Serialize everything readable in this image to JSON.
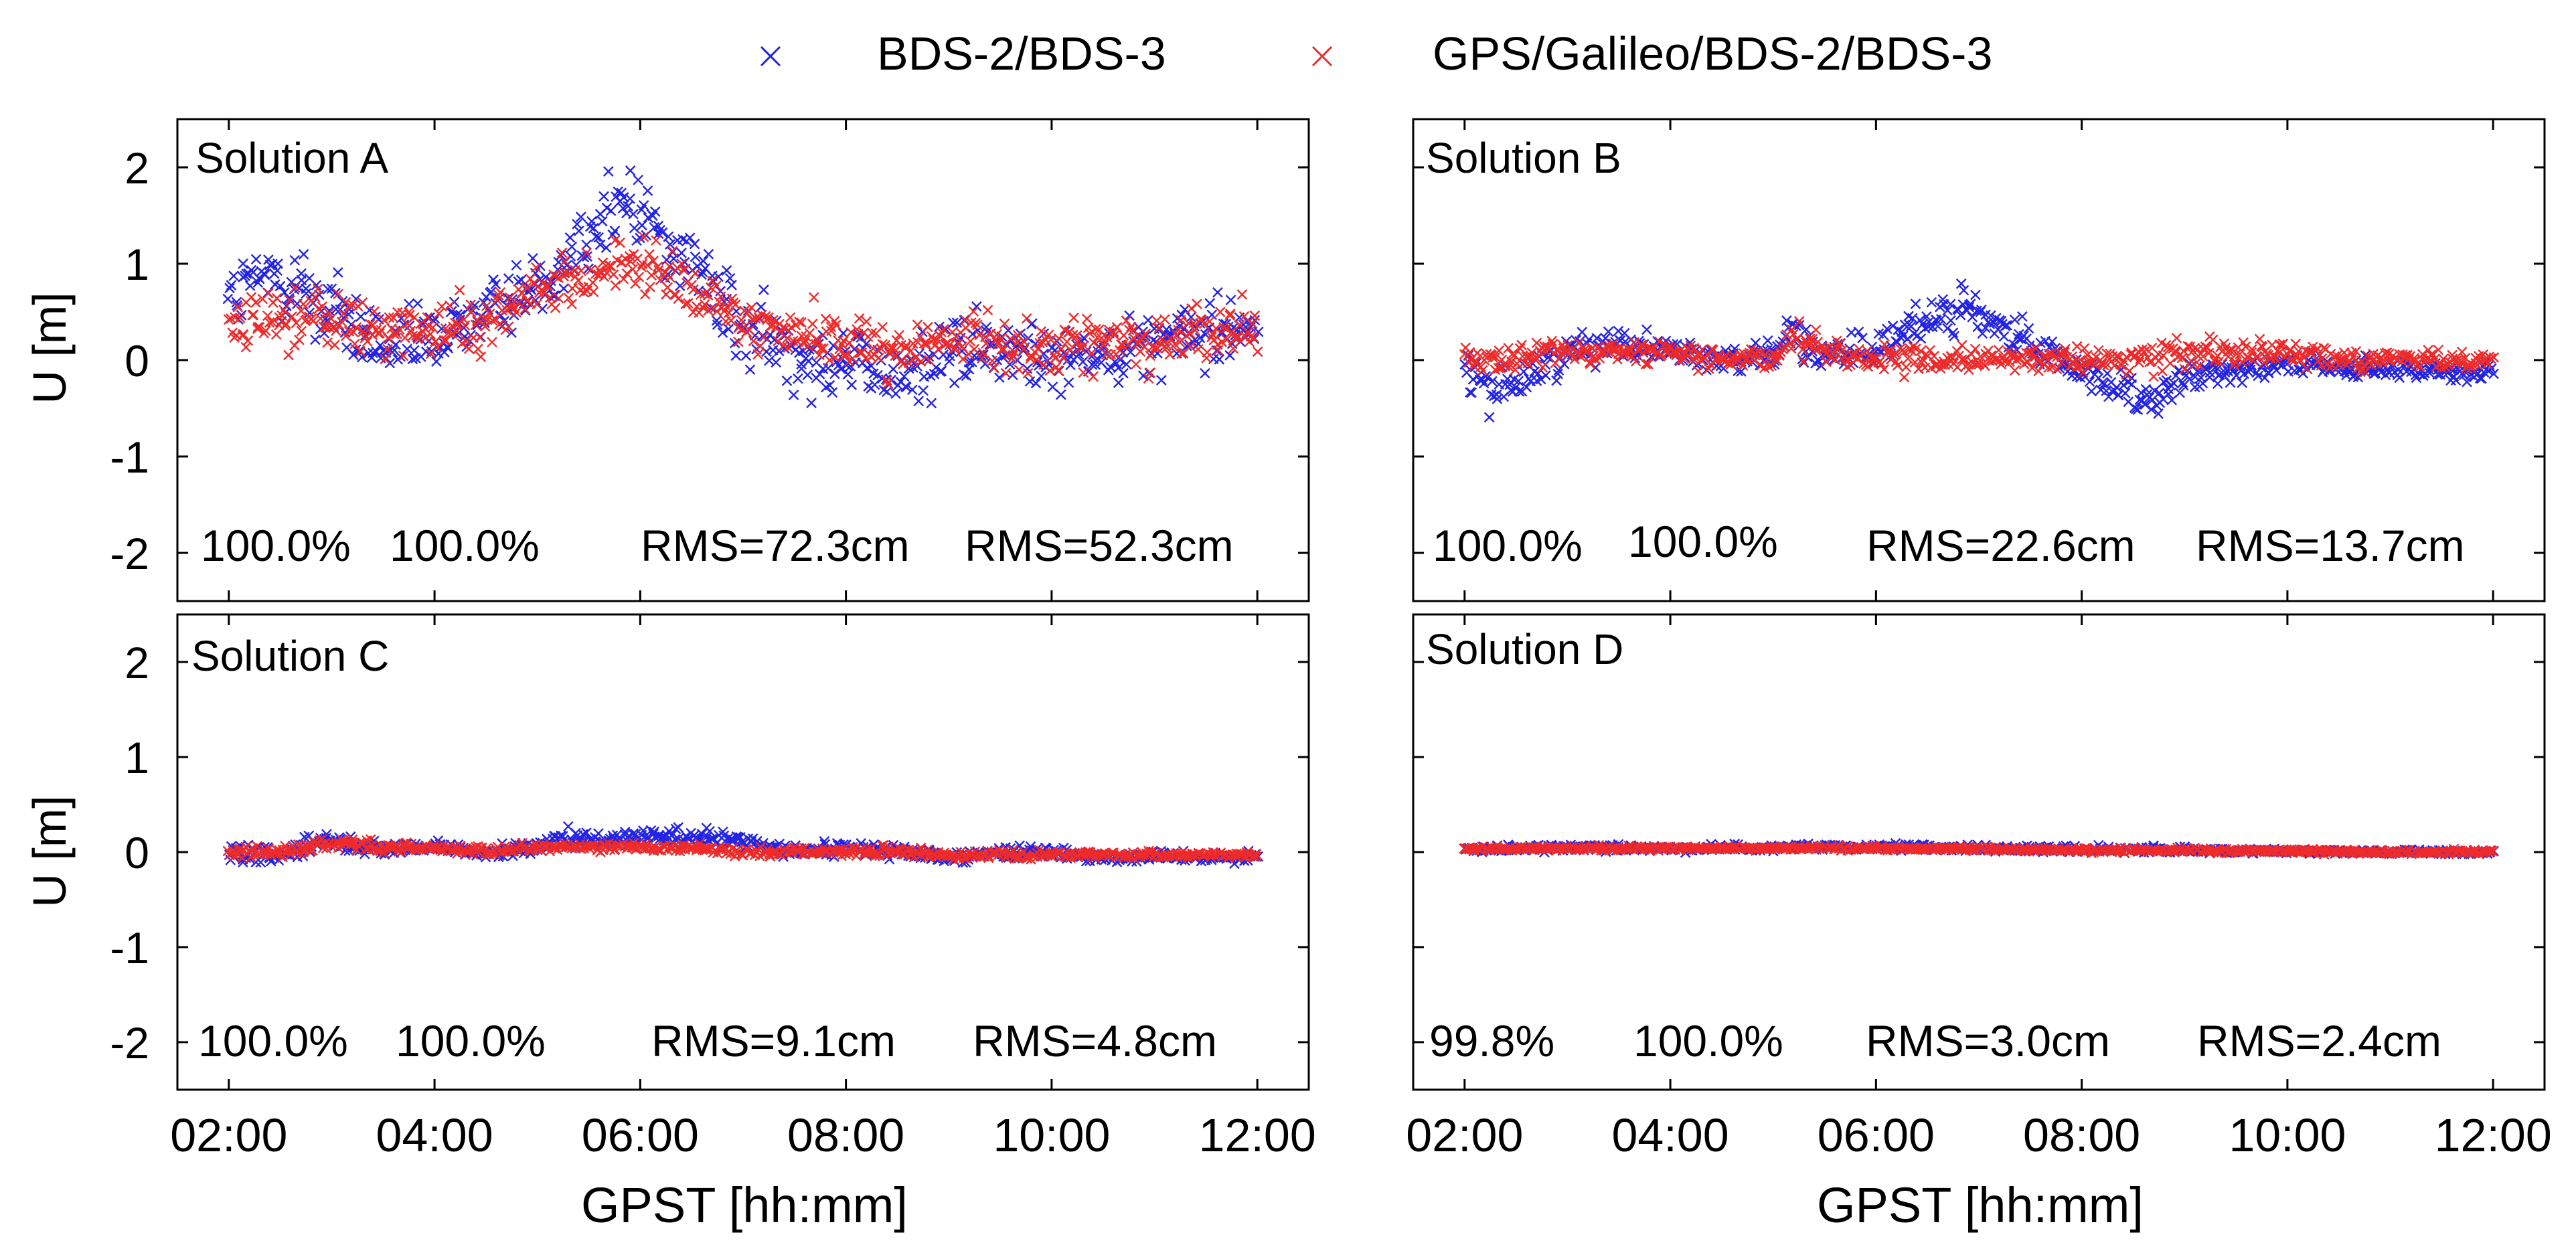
{
  "colors": {
    "series_blue": "#2323E6",
    "series_red": "#EE2A2A",
    "axis": "#000000",
    "background": "#FFFFFF"
  },
  "legend": {
    "entries": [
      {
        "name": "BDS-2/BDS-3",
        "color": "#2323E6",
        "marker": "x"
      },
      {
        "name": "GPS/Galileo/BDS-2/BDS-3",
        "color": "#EE2A2A",
        "marker": "x"
      }
    ]
  },
  "axes_text": {
    "ylabel": "U [m]",
    "xlabel": "GPST [hh:mm]",
    "ytick_labels": [
      "2",
      "1",
      "0",
      "-1",
      "-2"
    ],
    "xtick_labels": [
      "02:00",
      "04:00",
      "06:00",
      "08:00",
      "10:00",
      "12:00"
    ]
  },
  "chart_data": [
    {
      "type": "scatter",
      "title": "Solution A",
      "xlabel": "",
      "ylabel": "U [m]",
      "xlim": [
        1.5,
        12.5
      ],
      "ylim": [
        -2.5,
        2.5
      ],
      "xticks": [
        2,
        4,
        6,
        8,
        10,
        12
      ],
      "yticks": [
        2,
        1,
        0,
        -1,
        -2
      ],
      "grid": false,
      "x_unit": "hours GPST (02:00 to 12:00)",
      "series": [
        {
          "name": "BDS-2/BDS-3",
          "color": "#2323E6",
          "marker": "x",
          "availability": "100.0%",
          "rms": "RMS=72.3cm",
          "x": [
            2.0,
            2.5,
            3.0,
            3.5,
            4.0,
            4.5,
            5.0,
            5.5,
            5.9,
            6.2,
            6.5,
            7.0,
            7.5,
            8.0,
            8.5,
            9.0,
            9.5,
            10.0,
            10.5,
            11.0,
            11.5,
            12.0
          ],
          "y": [
            0.6,
            0.9,
            0.5,
            0.1,
            0.2,
            0.5,
            0.8,
            1.3,
            1.7,
            1.3,
            1.0,
            0.3,
            0.1,
            0.0,
            -0.2,
            0.1,
            0.1,
            0.0,
            0.1,
            0.2,
            0.3,
            0.4
          ],
          "spread": [
            0.35,
            0.45,
            0.4,
            0.35,
            0.35,
            0.3,
            0.3,
            0.35,
            0.4,
            0.35,
            0.35,
            0.35,
            0.35,
            0.35,
            0.35,
            0.35,
            0.35,
            0.3,
            0.3,
            0.3,
            0.3,
            0.3
          ]
        },
        {
          "name": "GPS/Galileo/BDS-2/BDS-3",
          "color": "#EE2A2A",
          "marker": "x",
          "availability": "100.0%",
          "rms": "RMS=52.3cm",
          "x": [
            2.0,
            2.5,
            3.0,
            3.5,
            4.0,
            4.5,
            5.0,
            5.5,
            5.9,
            6.2,
            6.5,
            7.0,
            7.5,
            8.0,
            8.5,
            9.0,
            9.5,
            10.0,
            10.5,
            11.0,
            11.5,
            12.0
          ],
          "y": [
            0.3,
            0.5,
            0.4,
            0.3,
            0.3,
            0.4,
            0.7,
            0.9,
            1.0,
            0.9,
            0.7,
            0.4,
            0.3,
            0.2,
            0.1,
            0.2,
            0.2,
            0.1,
            0.2,
            0.2,
            0.3,
            0.3
          ],
          "spread": [
            0.25,
            0.3,
            0.3,
            0.25,
            0.25,
            0.25,
            0.25,
            0.25,
            0.25,
            0.25,
            0.25,
            0.25,
            0.25,
            0.25,
            0.25,
            0.25,
            0.25,
            0.25,
            0.25,
            0.25,
            0.25,
            0.25
          ]
        }
      ]
    },
    {
      "type": "scatter",
      "title": "Solution B",
      "xlabel": "",
      "ylabel": "",
      "xlim": [
        1.5,
        12.5
      ],
      "ylim": [
        -2.5,
        2.5
      ],
      "xticks": [
        2,
        4,
        6,
        8,
        10,
        12
      ],
      "yticks": [
        2,
        1,
        0,
        -1,
        -2
      ],
      "grid": false,
      "x_unit": "hours GPST (02:00 to 12:00)",
      "series": [
        {
          "name": "BDS-2/BDS-3",
          "color": "#2323E6",
          "marker": "x",
          "availability": "100.0%",
          "rms": "RMS=22.6cm",
          "x": [
            2.0,
            2.3,
            2.7,
            3.0,
            3.5,
            4.0,
            4.5,
            5.0,
            5.2,
            5.5,
            6.0,
            6.5,
            6.8,
            7.2,
            7.6,
            8.0,
            8.4,
            8.6,
            9.0,
            9.5,
            10.0,
            10.5,
            11.0,
            11.5,
            12.0
          ],
          "y": [
            -0.2,
            -0.3,
            -0.1,
            0.1,
            0.2,
            0.1,
            0.0,
            0.1,
            0.3,
            0.0,
            0.1,
            0.4,
            0.6,
            0.3,
            0.1,
            -0.1,
            -0.3,
            -0.5,
            -0.2,
            -0.1,
            0.0,
            -0.1,
            -0.1,
            -0.1,
            -0.1
          ],
          "spread": [
            0.2,
            0.2,
            0.2,
            0.15,
            0.15,
            0.12,
            0.12,
            0.12,
            0.25,
            0.15,
            0.15,
            0.2,
            0.2,
            0.2,
            0.15,
            0.15,
            0.15,
            0.2,
            0.15,
            0.12,
            0.12,
            0.1,
            0.1,
            0.1,
            0.1
          ]
        },
        {
          "name": "GPS/Galileo/BDS-2/BDS-3",
          "color": "#EE2A2A",
          "marker": "x",
          "availability": "100.0%",
          "rms": "RMS=13.7cm",
          "x": [
            2.0,
            2.5,
            3.0,
            3.5,
            4.0,
            4.5,
            5.0,
            5.2,
            5.5,
            6.0,
            6.5,
            7.0,
            7.5,
            8.0,
            8.5,
            9.0,
            9.5,
            10.0,
            10.5,
            11.0,
            11.5,
            12.0
          ],
          "y": [
            0.0,
            0.0,
            0.1,
            0.1,
            0.1,
            0.0,
            0.0,
            0.3,
            0.1,
            0.0,
            0.0,
            0.0,
            0.0,
            0.0,
            0.0,
            0.1,
            0.1,
            0.1,
            0.0,
            0.0,
            0.0,
            0.0
          ],
          "spread": [
            0.12,
            0.12,
            0.12,
            0.1,
            0.1,
            0.1,
            0.1,
            0.2,
            0.12,
            0.12,
            0.12,
            0.12,
            0.12,
            0.12,
            0.12,
            0.15,
            0.12,
            0.1,
            0.1,
            0.08,
            0.08,
            0.08
          ]
        }
      ]
    },
    {
      "type": "scatter",
      "title": "Solution C",
      "xlabel": "GPST [hh:mm]",
      "ylabel": "U [m]",
      "xlim": [
        1.5,
        12.5
      ],
      "ylim": [
        -2.5,
        2.5
      ],
      "xticks": [
        2,
        4,
        6,
        8,
        10,
        12
      ],
      "yticks": [
        2,
        1,
        0,
        -1,
        -2
      ],
      "grid": false,
      "x_unit": "hours GPST (02:00 to 12:00)",
      "series": [
        {
          "name": "BDS-2/BDS-3",
          "color": "#2323E6",
          "marker": "x",
          "availability": "100.0%",
          "rms": "RMS=9.1cm",
          "x": [
            2.0,
            2.5,
            2.8,
            3.0,
            3.5,
            4.0,
            4.5,
            5.0,
            5.3,
            5.5,
            6.0,
            6.5,
            7.0,
            7.5,
            8.0,
            8.5,
            9.0,
            9.5,
            10.0,
            10.5,
            11.0,
            11.5,
            12.0
          ],
          "y": [
            0.0,
            -0.05,
            0.15,
            0.1,
            0.05,
            0.05,
            0.0,
            0.05,
            0.15,
            0.1,
            0.15,
            0.15,
            0.1,
            0.0,
            0.05,
            0.0,
            -0.05,
            0.0,
            0.0,
            -0.05,
            -0.05,
            -0.05,
            -0.05
          ],
          "spread": [
            0.08,
            0.08,
            0.12,
            0.08,
            0.06,
            0.06,
            0.05,
            0.06,
            0.1,
            0.08,
            0.08,
            0.08,
            0.08,
            0.07,
            0.07,
            0.07,
            0.06,
            0.06,
            0.06,
            0.05,
            0.05,
            0.05,
            0.05
          ]
        },
        {
          "name": "GPS/Galileo/BDS-2/BDS-3",
          "color": "#EE2A2A",
          "marker": "x",
          "availability": "100.0%",
          "rms": "RMS=4.8cm",
          "x": [
            2.0,
            2.5,
            3.0,
            3.5,
            4.0,
            4.5,
            5.0,
            5.5,
            6.0,
            6.5,
            7.0,
            7.5,
            8.0,
            8.5,
            9.0,
            9.5,
            10.0,
            10.5,
            11.0,
            11.5,
            12.0
          ],
          "y": [
            0.0,
            0.0,
            0.1,
            0.05,
            0.05,
            0.0,
            0.05,
            0.05,
            0.05,
            0.05,
            0.0,
            0.0,
            0.0,
            0.0,
            -0.03,
            -0.02,
            -0.03,
            -0.03,
            -0.03,
            -0.03,
            -0.03
          ],
          "spread": [
            0.05,
            0.05,
            0.06,
            0.05,
            0.04,
            0.04,
            0.04,
            0.04,
            0.04,
            0.04,
            0.04,
            0.04,
            0.05,
            0.05,
            0.04,
            0.04,
            0.04,
            0.03,
            0.03,
            0.03,
            0.03
          ]
        }
      ]
    },
    {
      "type": "scatter",
      "title": "Solution D",
      "xlabel": "GPST [hh:mm]",
      "ylabel": "",
      "xlim": [
        1.5,
        12.5
      ],
      "ylim": [
        -2.5,
        2.5
      ],
      "xticks": [
        2,
        4,
        6,
        8,
        10,
        12
      ],
      "yticks": [
        2,
        1,
        0,
        -1,
        -2
      ],
      "grid": false,
      "x_unit": "hours GPST (02:00 to 12:00)",
      "series": [
        {
          "name": "BDS-2/BDS-3",
          "color": "#2323E6",
          "marker": "x",
          "availability": "99.8%",
          "rms": "RMS=3.0cm",
          "x": [
            2.0,
            3.0,
            4.0,
            5.0,
            6.0,
            7.0,
            8.0,
            9.0,
            10.0,
            11.0,
            12.0
          ],
          "y": [
            0.03,
            0.05,
            0.04,
            0.05,
            0.05,
            0.04,
            0.03,
            0.02,
            0.01,
            0.0,
            0.0
          ],
          "spread": [
            0.03,
            0.03,
            0.03,
            0.03,
            0.03,
            0.03,
            0.03,
            0.03,
            0.02,
            0.02,
            0.02
          ]
        },
        {
          "name": "GPS/Galileo/BDS-2/BDS-3",
          "color": "#EE2A2A",
          "marker": "x",
          "availability": "100.0%",
          "rms": "RMS=2.4cm",
          "x": [
            2.0,
            3.0,
            4.0,
            5.0,
            6.0,
            7.0,
            8.0,
            9.0,
            10.0,
            11.0,
            12.0
          ],
          "y": [
            0.03,
            0.04,
            0.04,
            0.04,
            0.04,
            0.03,
            0.02,
            0.02,
            0.01,
            0.0,
            0.0
          ],
          "spread": [
            0.02,
            0.02,
            0.02,
            0.02,
            0.02,
            0.02,
            0.02,
            0.02,
            0.02,
            0.02,
            0.02
          ]
        }
      ]
    }
  ]
}
